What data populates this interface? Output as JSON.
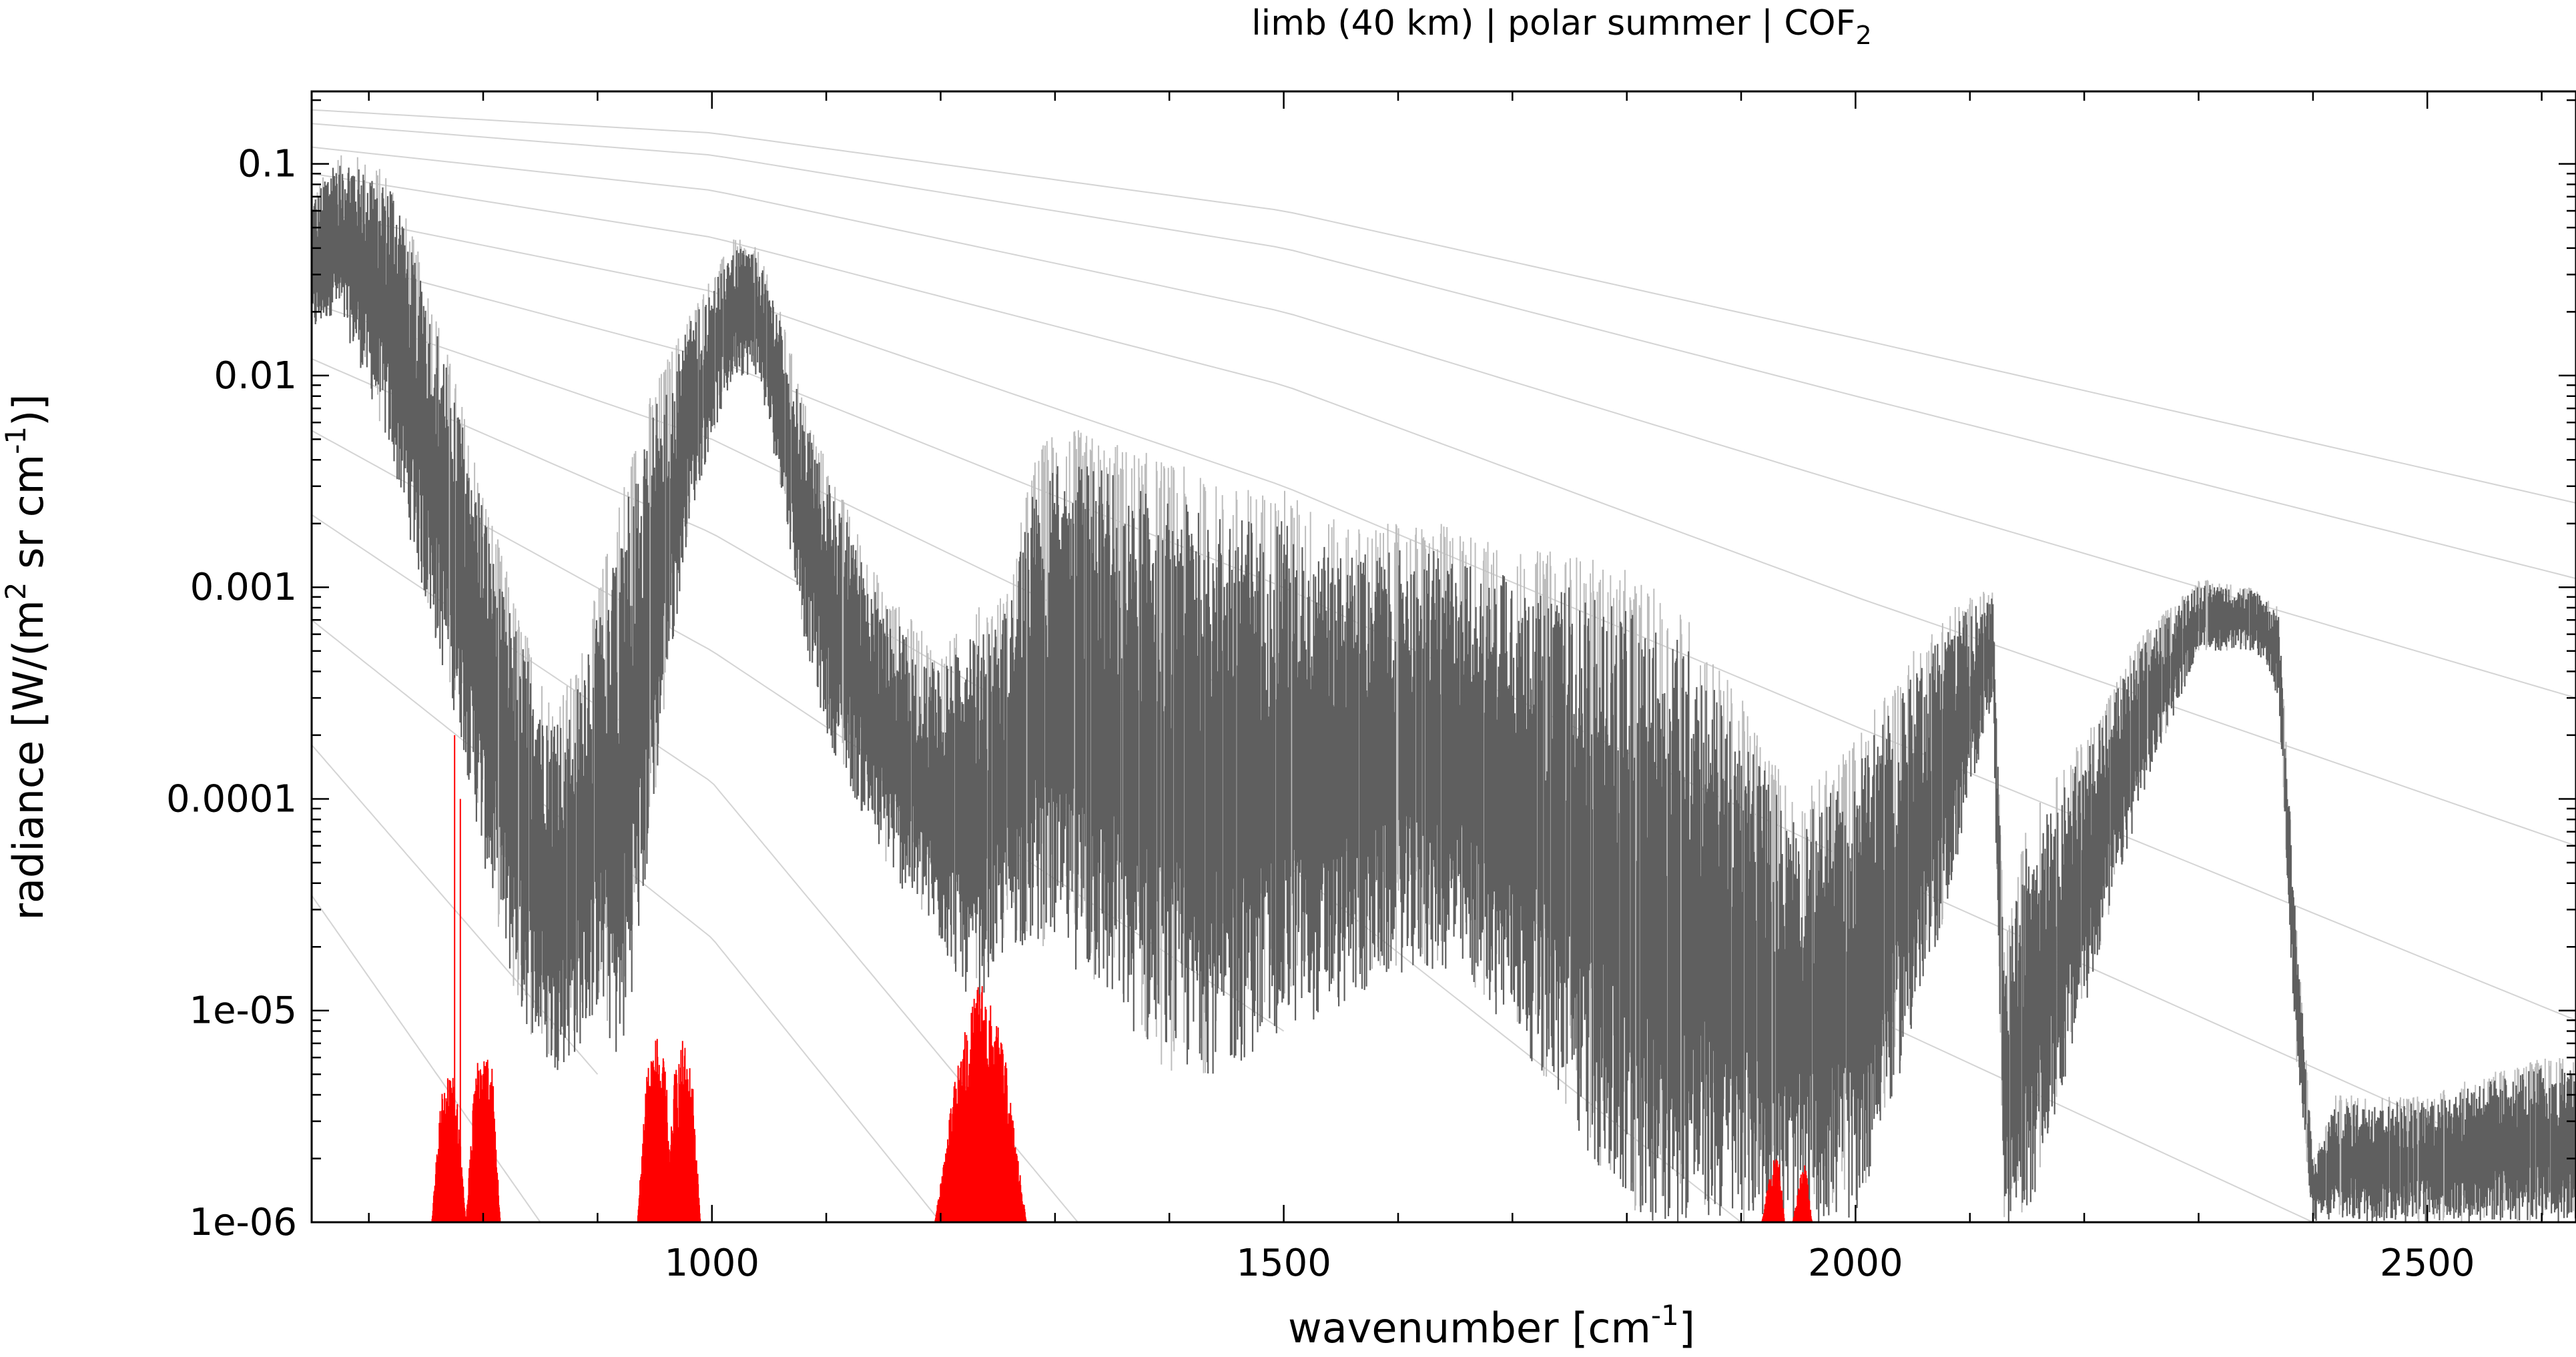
{
  "chart_data": {
    "type": "line",
    "title": {
      "prefix": "limb (40 km) | polar summer | COF",
      "subscript": "2"
    },
    "xlabel": {
      "prefix": "wavenumber [cm",
      "sup": "-1",
      "suffix": "]"
    },
    "ylabel": {
      "p1": "radiance [W/(m",
      "sup1": "2",
      "p2": " sr cm",
      "sup2": "-1",
      "p3": ")]"
    },
    "xlim": [
      650,
      2630
    ],
    "ylim": [
      1e-06,
      0.22
    ],
    "yscale": "log",
    "grid": false,
    "legend": "none",
    "x_ticks": [
      {
        "value": 1000,
        "label": "1000"
      },
      {
        "value": 1500,
        "label": "1500"
      },
      {
        "value": 2000,
        "label": "2000"
      },
      {
        "value": 2500,
        "label": "2500"
      }
    ],
    "y_ticks": [
      {
        "value": 0.1,
        "label": "0.1"
      },
      {
        "value": 0.01,
        "label": "0.01"
      },
      {
        "value": 0.001,
        "label": "0.001"
      },
      {
        "value": 0.0001,
        "label": "0.0001"
      },
      {
        "value": 1e-05,
        "label": "1e-05"
      },
      {
        "value": 1e-06,
        "label": "1e-06"
      }
    ],
    "series": [
      {
        "role": "total atmosphere spectrum (envelope)",
        "color": "#5f5f5f",
        "light_color": "#bdbdbd",
        "x": [
          650,
          670,
          690,
          720,
          750,
          780,
          800,
          830,
          860,
          880,
          900,
          920,
          940,
          960,
          980,
          1000,
          1020,
          1040,
          1060,
          1080,
          1100,
          1150,
          1200,
          1230,
          1260,
          1280,
          1300,
          1350,
          1400,
          1450,
          1500,
          1550,
          1600,
          1650,
          1700,
          1750,
          1800,
          1850,
          1900,
          1950,
          2000,
          2050,
          2080,
          2100,
          2120,
          2130,
          2150,
          2200,
          2250,
          2300,
          2350,
          2370,
          2385,
          2400,
          2420,
          2450,
          2500,
          2550,
          2600,
          2630
        ],
        "upper": [
          0.07,
          0.11,
          0.11,
          0.09,
          0.03,
          0.008,
          0.003,
          0.0008,
          0.0003,
          0.0004,
          0.001,
          0.003,
          0.007,
          0.012,
          0.02,
          0.03,
          0.045,
          0.04,
          0.02,
          0.008,
          0.004,
          0.001,
          0.0005,
          0.0008,
          0.001,
          0.004,
          0.006,
          0.005,
          0.004,
          0.003,
          0.003,
          0.002,
          0.002,
          0.002,
          0.0015,
          0.0015,
          0.0012,
          0.0008,
          0.0003,
          0.0001,
          0.0002,
          0.0005,
          0.0008,
          0.0009,
          0.001,
          2e-05,
          8e-05,
          0.0002,
          0.0006,
          0.0011,
          0.001,
          0.0008,
          3e-05,
          2e-06,
          4e-06,
          4e-06,
          4e-06,
          5e-06,
          6e-06,
          6e-06
        ],
        "lower": [
          0.015,
          0.02,
          0.012,
          0.004,
          0.0008,
          0.0002,
          5e-05,
          1e-05,
          5e-06,
          6e-06,
          1e-05,
          5e-06,
          3e-05,
          0.0003,
          0.002,
          0.005,
          0.01,
          0.01,
          0.003,
          0.0006,
          0.0002,
          5e-05,
          2e-05,
          1e-05,
          2e-05,
          2e-05,
          2e-05,
          1e-05,
          5e-06,
          5e-06,
          8e-06,
          1e-05,
          1.5e-05,
          1.5e-05,
          8e-06,
          3e-06,
          1e-06,
          1e-06,
          1e-06,
          1e-06,
          1e-06,
          8e-06,
          3e-05,
          0.0001,
          0.0003,
          1e-06,
          1e-06,
          1e-05,
          0.0001,
          0.0005,
          0.0005,
          0.0003,
          6e-06,
          1e-06,
          1e-06,
          1e-06,
          1e-06,
          1e-06,
          1e-06,
          1e-06
        ]
      },
      {
        "role": "COF2 contribution",
        "color": "#ff0000",
        "bands": [
          {
            "x": [
              755,
              763,
              770,
              777,
              785
            ],
            "y": [
              1e-06,
              4e-06,
              5.8e-06,
              4e-06,
              1e-06
            ]
          },
          {
            "x": [
              785,
              793,
              800,
              808,
              815
            ],
            "y": [
              1e-06,
              5.5e-06,
              7e-06,
              5.5e-06,
              1e-06
            ]
          },
          {
            "x": [
              935,
              943,
              953,
              960,
              966
            ],
            "y": [
              1e-06,
              6e-06,
              8e-06,
              5e-06,
              1e-06
            ]
          },
          {
            "x": [
              960,
              967,
              975,
              983,
              990
            ],
            "y": [
              1e-06,
              5e-06,
              7.5e-06,
              5e-06,
              1e-06
            ]
          },
          {
            "x": [
              1195,
              1215,
              1235,
              1255,
              1275
            ],
            "y": [
              1e-06,
              6e-06,
              1.5e-05,
              7e-06,
              1e-06
            ]
          },
          {
            "x": [
              1918,
              1926,
              1932,
              1938
            ],
            "y": [
              1e-06,
              1.8e-06,
              2.3e-06,
              1e-06
            ]
          },
          {
            "x": [
              1945,
              1951,
              1956,
              1962
            ],
            "y": [
              1e-06,
              1.6e-06,
              2e-06,
              1e-06
            ]
          }
        ],
        "spike": {
          "x": [
            775,
            780
          ],
          "y": [
            0.0002,
            0.0001
          ]
        }
      }
    ],
    "reference_planck_curves": [
      {
        "x": [
          650,
          1000,
          1500,
          2000,
          2630
        ],
        "y": [
          0.18,
          0.14,
          0.06,
          0.015,
          0.0025
        ]
      },
      {
        "x": [
          650,
          1000,
          1500,
          2000,
          2630
        ],
        "y": [
          0.155,
          0.11,
          0.04,
          0.008,
          0.0011
        ]
      },
      {
        "x": [
          650,
          1000,
          1500,
          2000,
          2630
        ],
        "y": [
          0.12,
          0.075,
          0.02,
          0.003,
          0.0003
        ]
      },
      {
        "x": [
          650,
          1000,
          1500,
          2000,
          2630
        ],
        "y": [
          0.09,
          0.045,
          0.009,
          0.0009,
          6e-05
        ]
      },
      {
        "x": [
          650,
          1000,
          1500,
          2000,
          2630
        ],
        "y": [
          0.06,
          0.025,
          0.003,
          0.00022,
          9e-06
        ]
      },
      {
        "x": [
          650,
          1000,
          1500,
          2000,
          2630
        ],
        "y": [
          0.038,
          0.012,
          0.001,
          5e-05,
          1.5e-06
        ]
      },
      {
        "x": [
          650,
          1000,
          1500,
          2000,
          2400
        ],
        "y": [
          0.022,
          0.005,
          0.00025,
          1e-05,
          1e-06
        ]
      },
      {
        "x": [
          650,
          1000,
          1500,
          1900
        ],
        "y": [
          0.012,
          0.0018,
          5e-05,
          1e-06
        ]
      },
      {
        "x": [
          650,
          1000,
          1500
        ],
        "y": [
          0.0055,
          0.0005,
          8e-06
        ]
      },
      {
        "x": [
          650,
          1000,
          1320
        ],
        "y": [
          0.0022,
          0.00012,
          1e-06
        ]
      },
      {
        "x": [
          650,
          1000,
          1200
        ],
        "y": [
          0.0007,
          2.2e-05,
          1e-06
        ]
      },
      {
        "x": [
          650,
          900
        ],
        "y": [
          0.00018,
          5e-06
        ]
      },
      {
        "x": [
          650,
          850
        ],
        "y": [
          3.5e-05,
          1e-06
        ]
      }
    ]
  }
}
